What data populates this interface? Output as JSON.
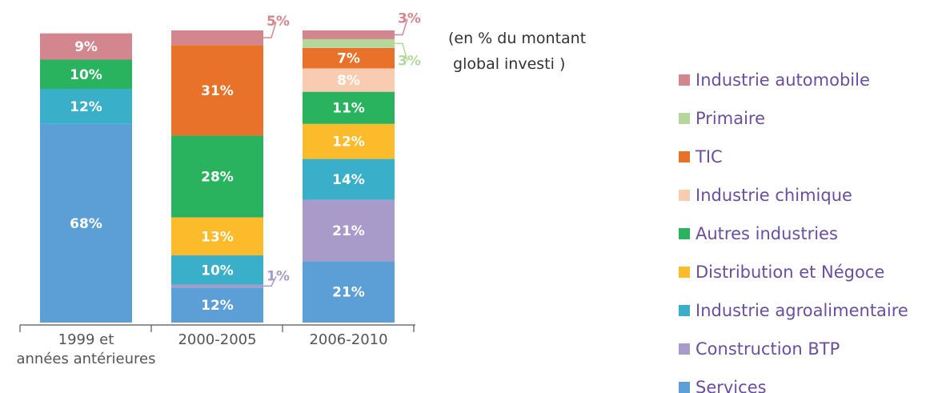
{
  "chart_data": {
    "type": "stacked-bar",
    "note": "(en % du montant\n global investi )",
    "categories": [
      "1999 et\nannées antérieures",
      "2000-2005",
      "2006-2010"
    ],
    "series": [
      {
        "name": "Services",
        "color": "#5b9fd6",
        "values": [
          68,
          12,
          21
        ],
        "value_labels": [
          "68%",
          "12%",
          "21%"
        ]
      },
      {
        "name": "Construction BTP",
        "color": "#a99bc9",
        "values": [
          null,
          1,
          21
        ],
        "value_labels": [
          null,
          "1%",
          "21%"
        ]
      },
      {
        "name": "Industrie agroalimentaire",
        "color": "#3aafc9",
        "values": [
          12,
          10,
          14
        ],
        "value_labels": [
          "12%",
          "10%",
          "14%"
        ]
      },
      {
        "name": "Distribution et Négoce",
        "color": "#fbbb2a",
        "values": [
          null,
          13,
          12
        ],
        "value_labels": [
          null,
          "13%",
          "12%"
        ]
      },
      {
        "name": "Autres industries",
        "color": "#2ab35e",
        "values": [
          10,
          28,
          11
        ],
        "value_labels": [
          "10%",
          "28%",
          "11%"
        ]
      },
      {
        "name": "Industrie chimique",
        "color": "#f9cbb0",
        "values": [
          null,
          null,
          8
        ],
        "value_labels": [
          null,
          null,
          "8%"
        ]
      },
      {
        "name": "TIC",
        "color": "#e8722a",
        "values": [
          null,
          31,
          7
        ],
        "value_labels": [
          null,
          "31%",
          "7%"
        ]
      },
      {
        "name": "Primaire",
        "color": "#b5d89a",
        "values": [
          null,
          null,
          3
        ],
        "value_labels": [
          null,
          null,
          "3%"
        ]
      },
      {
        "name": "Industrie automobile",
        "color": "#d4868e",
        "values": [
          9,
          5,
          3
        ],
        "value_labels": [
          "9%",
          "5%",
          "3%"
        ]
      }
    ]
  }
}
